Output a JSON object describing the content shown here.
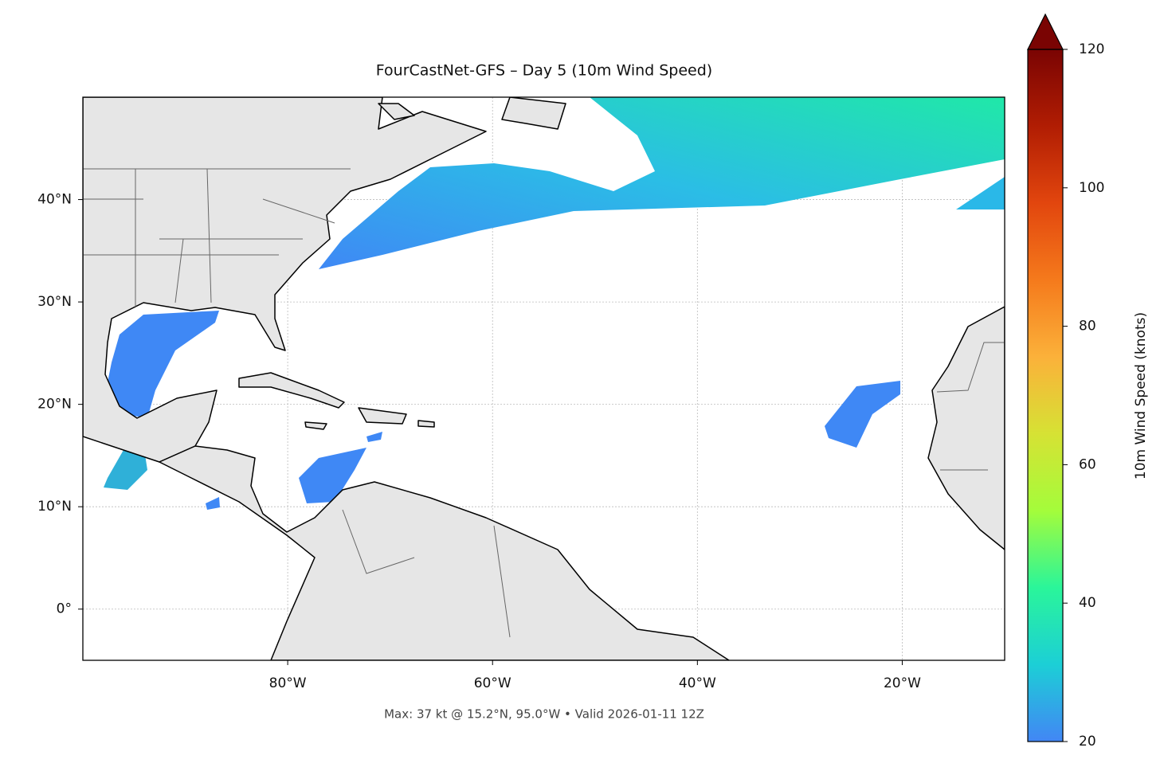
{
  "chart_data": {
    "type": "map",
    "title": "FourCastNet-GFS – Day 5 (10m Wind Speed)",
    "annotation": "Max: 37 kt @ 15.2°N, 95.0°W • Valid 2026-01-11 12Z",
    "xlim": [
      -100,
      -10
    ],
    "ylim": [
      -5,
      50
    ],
    "xticks": [
      {
        "value": -80,
        "label": "80°W"
      },
      {
        "value": -60,
        "label": "60°W"
      },
      {
        "value": -40,
        "label": "40°W"
      },
      {
        "value": -20,
        "label": "20°W"
      }
    ],
    "yticks": [
      {
        "value": 0,
        "label": "0°"
      },
      {
        "value": 10,
        "label": "10°N"
      },
      {
        "value": 20,
        "label": "20°N"
      },
      {
        "value": 30,
        "label": "30°N"
      },
      {
        "value": 40,
        "label": "40°N"
      }
    ],
    "grid": true,
    "colorbar": {
      "label": "10m Wind Speed (knots)",
      "lim": [
        20,
        120
      ],
      "ticks": [
        20,
        40,
        60,
        80,
        100,
        120
      ],
      "colormap": [
        "#4286f5",
        "#1ccfd6",
        "#2af59a",
        "#a4fc3b",
        "#d6e234",
        "#fbb13a",
        "#f57a1c",
        "#e2460e",
        "#b11d03",
        "#7a0403"
      ],
      "extend": "max"
    }
  }
}
